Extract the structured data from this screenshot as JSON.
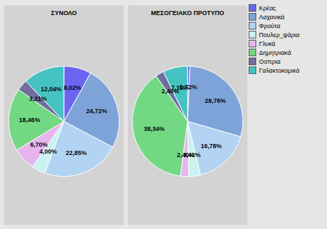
{
  "chart_data": [
    {
      "type": "pie",
      "title": "ΣΥΝΟΛΟ",
      "categories": [
        "Κρέας",
        "Λαχανικά",
        "Φρούτα",
        "Πουλερ_ψάρια",
        "Γλυκά",
        "Δημητριακά",
        "Οσπρια",
        "Γαλακτοκομικά"
      ],
      "values": [
        8.02,
        24.72,
        22.85,
        4.0,
        6.7,
        18.46,
        3.21,
        12.04
      ],
      "value_labels": [
        "8,02%",
        "24,72%",
        "22,85%",
        "4,00%",
        "6,70%",
        "18,46%",
        "3,21%",
        "12,04%"
      ],
      "colors": [
        "#6b66f0",
        "#7ea3d8",
        "#b3d3f2",
        "#c9f2ef",
        "#e6b5ee",
        "#73d883",
        "#6f6f9e",
        "#45c2c2"
      ],
      "data_labels": true
    },
    {
      "type": "pie",
      "title": "ΜΕΣΟΓΕΙΑΚΟ ΠΡΟΤΥΠΟ",
      "categories": [
        "Κρέας",
        "Λαχανικά",
        "Φρούτα",
        "Πουλερ_ψάρια",
        "Γλυκά",
        "Δημητριακά",
        "Οσπρια",
        "Γαλακτοκομικά"
      ],
      "values": [
        0.72,
        28.76,
        16.78,
        3.42,
        2.4,
        38.34,
        2.4,
        7.19
      ],
      "value_labels": [
        "0,72%",
        "28,76%",
        "16,78%",
        "3,42%",
        "2,40%",
        "38,34%",
        "2,40%",
        "7,19%"
      ],
      "colors": [
        "#6b66f0",
        "#7ea3d8",
        "#b3d3f2",
        "#c9f2ef",
        "#e6b5ee",
        "#73d883",
        "#6f6f9e",
        "#45c2c2"
      ],
      "data_labels": true,
      "legend": "right"
    }
  ]
}
